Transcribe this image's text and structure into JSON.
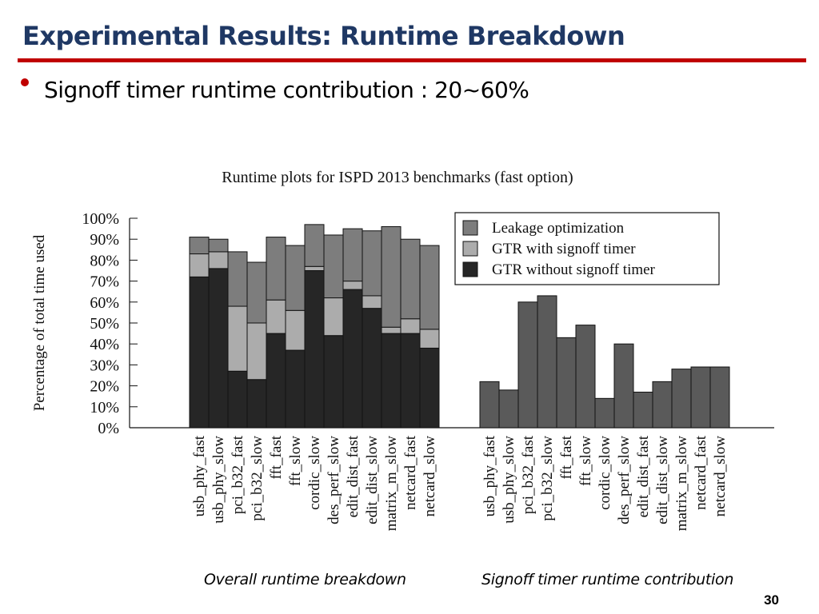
{
  "slide": {
    "title": "Experimental Results: Runtime Breakdown",
    "bullet": "Signoff timer runtime contribution : 20~60%",
    "caption_left": "Overall runtime breakdown",
    "caption_right": "Signoff timer runtime contribution",
    "page_number": "30",
    "title_color": "#1f3864",
    "accent_color": "#c00000"
  },
  "chart_data": [
    {
      "type": "bar",
      "stacked": true,
      "title": "Runtime plots for ISPD 2013 benchmarks (fast option)",
      "ylabel": "Percentage of total time used",
      "ylim": [
        0,
        100
      ],
      "yticks": [
        "0%",
        "10%",
        "20%",
        "30%",
        "40%",
        "50%",
        "60%",
        "70%",
        "80%",
        "90%",
        "100%"
      ],
      "categories": [
        "usb_phy_fast",
        "usb_phy_slow",
        "pci_b32_fast",
        "pci_b32_slow",
        "fft_fast",
        "fft_slow",
        "cordic_slow",
        "des_perf_slow",
        "edit_dist_fast",
        "edit_dist_slow",
        "matrix_m_slow",
        "netcard_fast",
        "netcard_slow"
      ],
      "legend_position": "top-right",
      "series": [
        {
          "name": "GTR without signoff timer",
          "color": "#262626",
          "values": [
            72,
            76,
            27,
            23,
            45,
            37,
            75,
            44,
            66,
            57,
            45,
            45,
            38
          ]
        },
        {
          "name": "GTR with signoff timer",
          "color": "#acacac",
          "values": [
            11,
            8,
            31,
            27,
            16,
            19,
            2,
            18,
            4,
            6,
            3,
            7,
            9
          ]
        },
        {
          "name": "Leakage optimization",
          "color": "#7d7d7d",
          "values": [
            8,
            6,
            26,
            29,
            30,
            31,
            20,
            30,
            25,
            31,
            48,
            38,
            40
          ]
        }
      ],
      "legend_order": [
        "Leakage optimization",
        "GTR with signoff timer",
        "GTR without signoff timer"
      ]
    },
    {
      "type": "bar",
      "categories": [
        "usb_phy_fast",
        "usb_phy_slow",
        "pci_b32_fast",
        "pci_b32_slow",
        "fft_fast",
        "fft_slow",
        "cordic_slow",
        "des_perf_slow",
        "edit_dist_fast",
        "edit_dist_slow",
        "matrix_m_slow",
        "netcard_fast",
        "netcard_slow"
      ],
      "ylim": [
        0,
        100
      ],
      "series": [
        {
          "color": "#5a5a5a",
          "values": [
            22,
            18,
            60,
            63,
            43,
            49,
            14,
            40,
            17,
            22,
            28,
            29,
            29
          ]
        }
      ]
    }
  ]
}
